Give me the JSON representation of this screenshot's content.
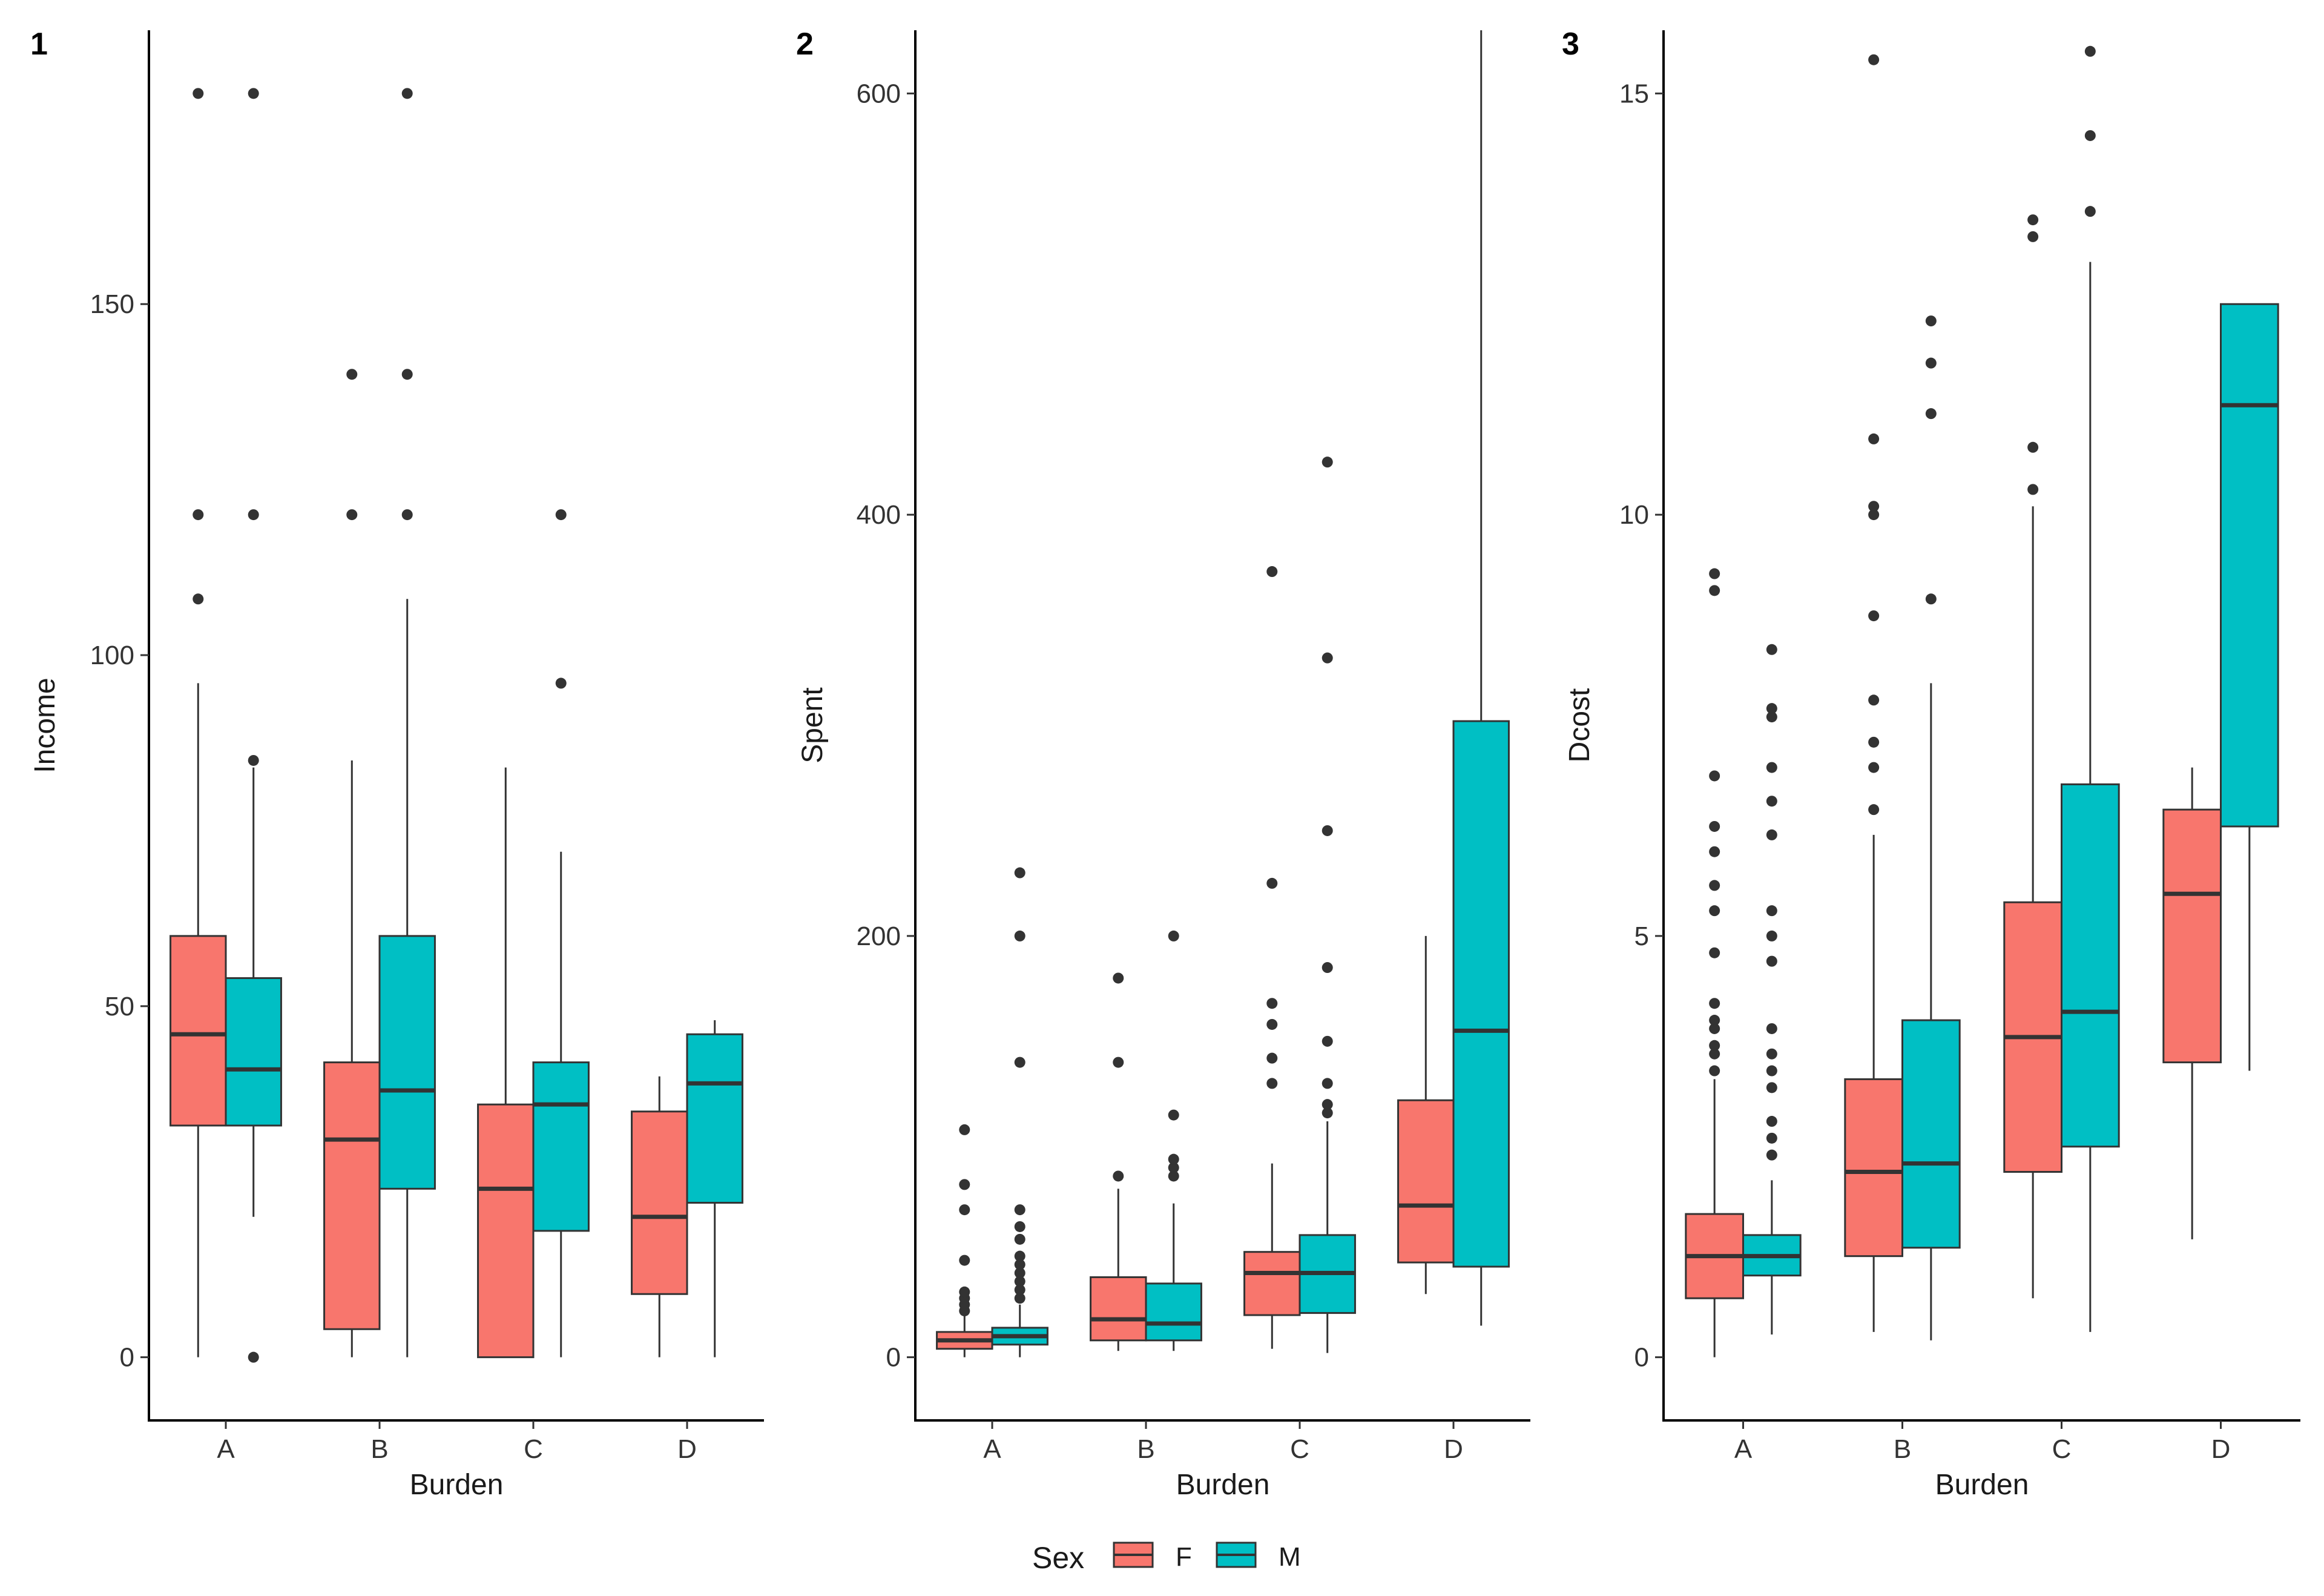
{
  "colors": {
    "F": "#F8766D",
    "M": "#00BFC4",
    "outlier": "#333333"
  },
  "legend": {
    "title": "Sex",
    "items": [
      {
        "key": "F",
        "label": "F"
      },
      {
        "key": "M",
        "label": "M"
      }
    ]
  },
  "chart_data": [
    {
      "type": "boxplot",
      "panel": "1",
      "xlabel": "Burden",
      "ylabel": "Income",
      "ylim": [
        -9,
        189
      ],
      "yticks": [
        0,
        50,
        100,
        150
      ],
      "categories": [
        "A",
        "B",
        "C",
        "D"
      ],
      "series": [
        {
          "name": "F",
          "boxes": [
            {
              "q1": 33,
              "median": 46,
              "q3": 60,
              "lower": 0,
              "upper": 96,
              "outliers": [
                108,
                120,
                180
              ]
            },
            {
              "q1": 4,
              "median": 31,
              "q3": 42,
              "lower": 0,
              "upper": 85,
              "outliers": [
                120,
                140
              ]
            },
            {
              "q1": 0,
              "median": 24,
              "q3": 36,
              "lower": 0,
              "upper": 84,
              "outliers": []
            },
            {
              "q1": 9,
              "median": 20,
              "q3": 35,
              "lower": 0,
              "upper": 40,
              "outliers": []
            }
          ]
        },
        {
          "name": "M",
          "boxes": [
            {
              "q1": 33,
              "median": 41,
              "q3": 54,
              "lower": 20,
              "upper": 84,
              "outliers": [
                0,
                85,
                120,
                180
              ]
            },
            {
              "q1": 24,
              "median": 38,
              "q3": 60,
              "lower": 0,
              "upper": 108,
              "outliers": [
                120,
                140,
                180
              ]
            },
            {
              "q1": 18,
              "median": 36,
              "q3": 42,
              "lower": 0,
              "upper": 72,
              "outliers": [
                96,
                120
              ]
            },
            {
              "q1": 22,
              "median": 39,
              "q3": 46,
              "lower": 0,
              "upper": 48,
              "outliers": []
            }
          ]
        }
      ]
    },
    {
      "type": "boxplot",
      "panel": "2",
      "xlabel": "Burden",
      "ylabel": "Spent",
      "ylim": [
        -30,
        630
      ],
      "yticks": [
        0,
        200,
        400,
        600
      ],
      "categories": [
        "A",
        "B",
        "C",
        "D"
      ],
      "series": [
        {
          "name": "F",
          "boxes": [
            {
              "q1": 4,
              "median": 8,
              "q3": 12,
              "lower": 0,
              "upper": 20,
              "outliers": [
                22,
                25,
                28,
                31,
                46,
                70,
                82,
                108
              ]
            },
            {
              "q1": 8,
              "median": 18,
              "q3": 38,
              "lower": 3,
              "upper": 80,
              "outliers": [
                86,
                140,
                180
              ]
            },
            {
              "q1": 20,
              "median": 40,
              "q3": 50,
              "lower": 4,
              "upper": 92,
              "outliers": [
                130,
                142,
                158,
                168,
                225,
                373
              ]
            },
            {
              "q1": 45,
              "median": 72,
              "q3": 122,
              "lower": 30,
              "upper": 200,
              "outliers": []
            }
          ]
        },
        {
          "name": "M",
          "boxes": [
            {
              "q1": 6,
              "median": 10,
              "q3": 14,
              "lower": 0,
              "upper": 25,
              "outliers": [
                28,
                32,
                36,
                40,
                44,
                48,
                56,
                62,
                70,
                140,
                200,
                230
              ]
            },
            {
              "q1": 8,
              "median": 16,
              "q3": 35,
              "lower": 3,
              "upper": 73,
              "outliers": [
                86,
                90,
                94,
                115,
                200
              ]
            },
            {
              "q1": 21,
              "median": 40,
              "q3": 58,
              "lower": 2,
              "upper": 112,
              "outliers": [
                116,
                120,
                130,
                150,
                185,
                250,
                332,
                425
              ]
            },
            {
              "q1": 43,
              "median": 155,
              "q3": 302,
              "lower": 15,
              "upper": 630,
              "outliers": []
            }
          ]
        }
      ]
    },
    {
      "type": "boxplot",
      "panel": "3",
      "xlabel": "Burden",
      "ylabel": "Dcost",
      "ylim": [
        -0.75,
        15.75
      ],
      "yticks": [
        0,
        5,
        10,
        15
      ],
      "categories": [
        "A",
        "B",
        "C",
        "D"
      ],
      "series": [
        {
          "name": "F",
          "boxes": [
            {
              "q1": 0.7,
              "median": 1.2,
              "q3": 1.7,
              "lower": 0,
              "upper": 3.3,
              "outliers": [
                3.4,
                3.6,
                3.7,
                3.9,
                4.0,
                4.2,
                4.8,
                5.3,
                5.6,
                6.0,
                6.3,
                6.9,
                9.1,
                9.3
              ]
            },
            {
              "q1": 1.2,
              "median": 2.2,
              "q3": 3.3,
              "lower": 0.3,
              "upper": 6.2,
              "outliers": [
                6.5,
                7.0,
                7.3,
                7.8,
                8.8,
                10.0,
                10.1,
                10.9,
                15.4
              ]
            },
            {
              "q1": 2.2,
              "median": 3.8,
              "q3": 5.4,
              "lower": 0.7,
              "upper": 10.1,
              "outliers": [
                10.3,
                10.8,
                13.3,
                13.5
              ]
            },
            {
              "q1": 3.5,
              "median": 5.5,
              "q3": 6.5,
              "lower": 1.4,
              "upper": 7.0,
              "outliers": []
            }
          ]
        },
        {
          "name": "M",
          "boxes": [
            {
              "q1": 0.97,
              "median": 1.2,
              "q3": 1.45,
              "lower": 0.27,
              "upper": 2.1,
              "outliers": [
                2.4,
                2.6,
                2.8,
                3.2,
                3.4,
                3.6,
                3.9,
                4.7,
                5.0,
                5.3,
                6.2,
                6.6,
                7.0,
                7.6,
                7.7,
                8.4
              ]
            },
            {
              "q1": 1.3,
              "median": 2.3,
              "q3": 4.0,
              "lower": 0.2,
              "upper": 8.0,
              "outliers": [
                9.0,
                11.2,
                11.8,
                12.3
              ]
            },
            {
              "q1": 2.5,
              "median": 4.1,
              "q3": 6.8,
              "lower": 0.3,
              "upper": 13.0,
              "outliers": [
                13.6,
                14.5,
                15.5
              ]
            },
            {
              "q1": 6.3,
              "median": 11.3,
              "q3": 12.5,
              "lower": 3.4,
              "upper": 12.5,
              "outliers": []
            }
          ]
        }
      ]
    }
  ]
}
